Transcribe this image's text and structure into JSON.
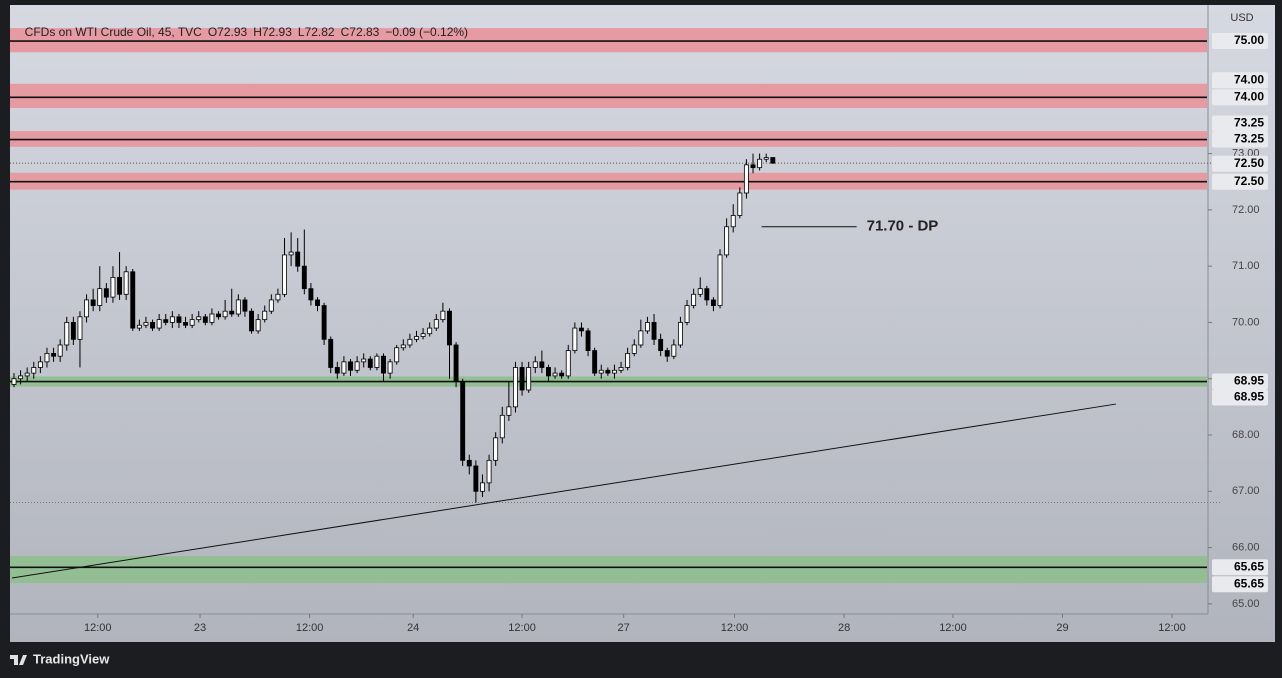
{
  "chart_data": {
    "type": "candlestick",
    "title": "CFDs on WTI Crude Oil, 45, TVC",
    "ohlc_labels": [
      "O72.93",
      "H72.93",
      "L72.82",
      "C72.83"
    ],
    "change_label": "−0.09 (−0.12%)",
    "currency": "USD",
    "up_color": "#ffffff",
    "down_color": "#000000",
    "open": [
      68.9,
      69.0,
      69.05,
      69.1,
      69.2,
      69.3,
      69.45,
      69.4,
      69.6,
      70.0,
      69.7,
      70.1,
      70.4,
      70.3,
      70.6,
      70.45,
      70.8,
      70.5,
      70.9,
      69.9,
      69.95,
      70.0,
      69.9,
      70.05,
      70.0,
      70.1,
      70.0,
      69.95,
      70.05,
      70.1,
      70.0,
      70.15,
      70.1,
      70.2,
      70.15,
      70.4,
      70.2,
      69.85,
      70.05,
      70.2,
      70.4,
      70.5,
      71.2,
      71.25,
      71.0,
      70.6,
      70.4,
      70.3,
      69.7,
      69.2,
      69.1,
      69.3,
      69.15,
      69.3,
      69.35,
      69.2,
      69.4,
      69.1,
      69.3,
      69.55,
      69.6,
      69.7,
      69.75,
      69.8,
      69.9,
      70.05,
      70.2,
      69.6,
      68.95,
      67.55,
      67.45,
      67.0,
      67.15,
      67.55,
      67.95,
      68.35,
      68.5,
      69.2,
      68.8,
      69.2,
      69.3,
      69.2,
      69.05,
      69.1,
      69.05,
      69.5,
      69.9,
      69.85,
      69.5,
      69.1,
      69.15,
      69.1,
      69.15,
      69.2,
      69.45,
      69.6,
      69.85,
      70.0,
      69.7,
      69.5,
      69.4,
      69.6,
      70.0,
      70.3,
      70.5,
      70.6,
      70.4,
      70.3,
      71.2,
      71.7,
      71.9,
      72.3,
      72.8,
      72.75,
      72.9,
      72.93
    ],
    "high": [
      69.1,
      69.15,
      69.2,
      69.3,
      69.4,
      69.55,
      69.55,
      69.7,
      70.1,
      70.1,
      70.2,
      70.5,
      70.6,
      71.0,
      70.7,
      71.0,
      71.25,
      71.0,
      70.95,
      70.05,
      70.1,
      70.05,
      70.15,
      70.15,
      70.2,
      70.15,
      70.1,
      70.15,
      70.2,
      70.15,
      70.25,
      70.2,
      70.4,
      70.6,
      70.5,
      70.45,
      70.25,
      70.15,
      70.3,
      70.5,
      70.6,
      71.5,
      71.6,
      71.5,
      71.65,
      70.7,
      70.45,
      70.35,
      69.75,
      69.3,
      69.4,
      69.35,
      69.4,
      69.45,
      69.4,
      69.45,
      69.45,
      69.35,
      69.6,
      69.7,
      69.8,
      69.85,
      69.9,
      70.0,
      70.15,
      70.35,
      70.25,
      69.65,
      69.0,
      67.65,
      67.55,
      67.3,
      67.65,
      68.05,
      68.5,
      68.95,
      69.3,
      69.3,
      69.3,
      69.4,
      69.5,
      69.25,
      69.2,
      69.15,
      69.6,
      70.0,
      70.0,
      69.9,
      69.55,
      69.25,
      69.2,
      69.25,
      69.3,
      69.55,
      69.7,
      70.05,
      70.1,
      70.15,
      69.8,
      69.55,
      69.7,
      70.1,
      70.4,
      70.6,
      70.8,
      70.65,
      70.45,
      71.3,
      71.85,
      72.1,
      72.4,
      72.9,
      73.0,
      73.0,
      73.0,
      72.93
    ],
    "low": [
      68.85,
      68.9,
      68.95,
      69.0,
      69.1,
      69.2,
      69.3,
      69.3,
      69.5,
      69.6,
      69.2,
      70.0,
      70.2,
      70.2,
      70.35,
      70.35,
      70.4,
      70.4,
      69.85,
      69.85,
      69.9,
      69.85,
      69.85,
      69.95,
      69.9,
      69.9,
      69.9,
      69.9,
      70.0,
      69.95,
      69.95,
      70.05,
      70.05,
      70.1,
      70.1,
      70.1,
      69.8,
      69.8,
      70.0,
      70.15,
      70.35,
      70.45,
      71.0,
      70.9,
      70.5,
      70.3,
      70.2,
      69.6,
      69.1,
      69.0,
      69.05,
      69.05,
      69.1,
      69.2,
      69.15,
      69.15,
      68.95,
      69.0,
      69.25,
      69.5,
      69.55,
      69.65,
      69.7,
      69.75,
      69.85,
      70.0,
      69.0,
      68.85,
      67.45,
      67.3,
      66.8,
      66.9,
      67.0,
      67.45,
      67.85,
      68.25,
      68.4,
      68.7,
      68.75,
      69.1,
      69.1,
      68.95,
      69.0,
      69.0,
      69.0,
      69.45,
      69.75,
      69.4,
      69.05,
      69.0,
      69.05,
      69.0,
      69.1,
      69.15,
      69.4,
      69.55,
      69.8,
      69.6,
      69.4,
      69.3,
      69.35,
      69.55,
      69.95,
      70.25,
      70.45,
      70.3,
      70.2,
      70.25,
      71.15,
      71.6,
      71.85,
      72.2,
      72.65,
      72.7,
      72.85,
      72.82
    ],
    "close": [
      69.0,
      69.05,
      69.1,
      69.2,
      69.3,
      69.45,
      69.4,
      69.6,
      70.0,
      69.7,
      70.1,
      70.4,
      70.3,
      70.6,
      70.45,
      70.8,
      70.5,
      70.9,
      69.9,
      69.95,
      70.0,
      69.9,
      70.05,
      70.0,
      70.1,
      70.0,
      69.95,
      70.05,
      70.1,
      70.0,
      70.15,
      70.1,
      70.2,
      70.15,
      70.4,
      70.2,
      69.85,
      70.05,
      70.2,
      70.4,
      70.5,
      71.2,
      71.25,
      71.0,
      70.6,
      70.4,
      70.3,
      69.7,
      69.2,
      69.1,
      69.3,
      69.15,
      69.3,
      69.35,
      69.2,
      69.4,
      69.1,
      69.3,
      69.55,
      69.6,
      69.7,
      69.75,
      69.8,
      69.9,
      70.05,
      70.2,
      69.6,
      68.95,
      67.55,
      67.45,
      67.0,
      67.15,
      67.55,
      67.95,
      68.35,
      68.5,
      69.2,
      68.8,
      69.2,
      69.3,
      69.2,
      69.05,
      69.1,
      69.05,
      69.5,
      69.9,
      69.85,
      69.5,
      69.1,
      69.15,
      69.1,
      69.15,
      69.2,
      69.45,
      69.6,
      69.85,
      70.0,
      69.7,
      69.5,
      69.4,
      69.6,
      70.0,
      70.3,
      70.5,
      70.6,
      70.4,
      70.3,
      71.2,
      71.7,
      71.9,
      72.3,
      72.8,
      72.75,
      72.9,
      72.93,
      72.83
    ],
    "xlim": [
      -0.3,
      180.8
    ],
    "xticks": [
      {
        "value": 12.7,
        "label": "12:00"
      },
      {
        "value": 28.2,
        "label": "23"
      },
      {
        "value": 44.8,
        "label": "12:00"
      },
      {
        "value": 60.5,
        "label": "24"
      },
      {
        "value": 77.0,
        "label": "12:00"
      },
      {
        "value": 92.4,
        "label": "27"
      },
      {
        "value": 109.2,
        "label": "12:00"
      },
      {
        "value": 125.8,
        "label": "28"
      },
      {
        "value": 142.3,
        "label": "12:00"
      },
      {
        "value": 158.9,
        "label": "29"
      },
      {
        "value": 175.5,
        "label": "12:00"
      }
    ],
    "ylim": [
      64.82,
      75.64
    ],
    "yticks": [
      {
        "value": 65,
        "label": "65.00"
      },
      {
        "value": 66,
        "label": "66.00"
      },
      {
        "value": 67,
        "label": "67.00"
      },
      {
        "value": 68,
        "label": "68.00"
      },
      {
        "value": 69,
        "label": "69.00"
      },
      {
        "value": 70,
        "label": "70.00"
      },
      {
        "value": 71,
        "label": "71.00"
      },
      {
        "value": 72,
        "label": "72.00"
      },
      {
        "value": 73,
        "label": "73.00"
      }
    ],
    "zones": [
      {
        "level": 75.0,
        "label": "75.00",
        "low": 74.8,
        "high": 75.23,
        "color": "#e8959c"
      },
      {
        "level": 74.0,
        "label": "74.00",
        "low": 73.81,
        "high": 74.24,
        "color": "#e8959c"
      },
      {
        "level": 73.25,
        "label": "73.25",
        "low": 73.12,
        "high": 73.4,
        "color": "#e8959c"
      },
      {
        "level": 72.5,
        "label": "72.50",
        "low": 72.36,
        "high": 72.66,
        "color": "#e8959c"
      },
      {
        "level": 68.95,
        "label": "68.95",
        "low": 68.86,
        "high": 69.04,
        "color": "#8fbf8f"
      },
      {
        "level": 65.65,
        "label": "65.65",
        "low": 65.37,
        "high": 65.85,
        "color": "#8fbf8f"
      }
    ],
    "trendline": {
      "x": [
        -0.3,
        167.0
      ],
      "y": [
        65.46,
        68.55
      ]
    },
    "annotation": {
      "text": "71.70 - DP",
      "value": 71.7,
      "x": [
        113.3,
        127.7
      ]
    }
  },
  "footer_brand": "TradingView"
}
